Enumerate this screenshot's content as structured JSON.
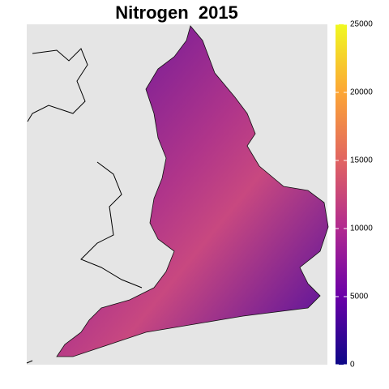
{
  "title": "Nitrogen  2015",
  "colorbar": {
    "lim": [
      0,
      25000
    ],
    "ticks": [
      0,
      5000,
      10000,
      15000,
      20000,
      25000
    ],
    "colors": [
      "#0d0887",
      "#6a00a8",
      "#b12a90",
      "#e16462",
      "#fca636",
      "#f0f921"
    ]
  }
}
